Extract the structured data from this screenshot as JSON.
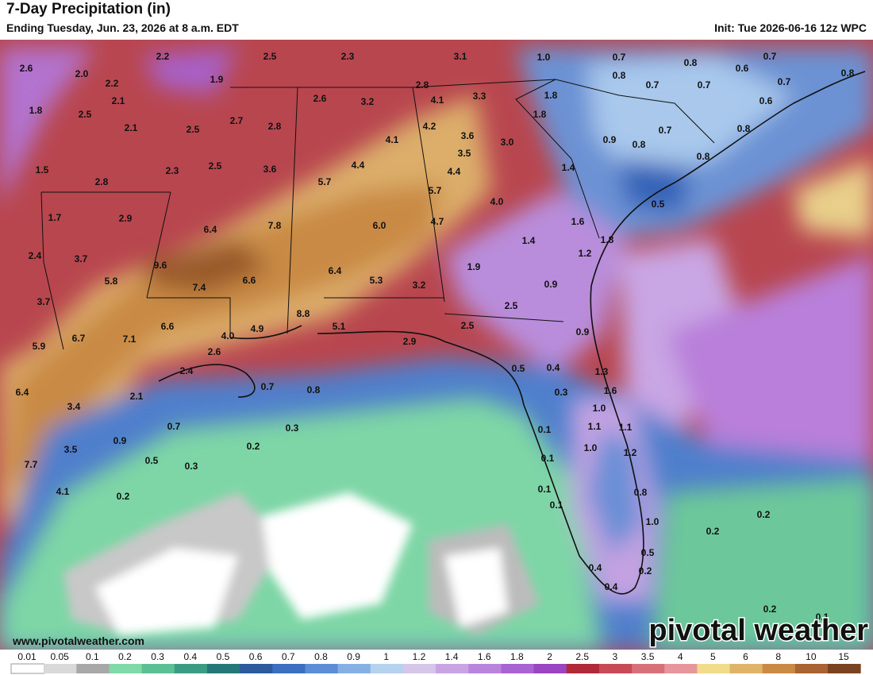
{
  "header": {
    "title": "7-Day Precipitation (in)",
    "subtitle": "Ending Tuesday, Jun. 23, 2026 at 8 a.m. EDT",
    "init": "Init: Tue 2026-06-16 12z WPC"
  },
  "map_labels": [
    "2.6",
    "2.2",
    "2.5",
    "2.3",
    "3.1",
    "1.0",
    "0.7",
    "0.8",
    "0.7",
    "0.6",
    "0.8",
    "2.0",
    "2.2",
    "1.9",
    "2.8",
    "0.8",
    "0.7",
    "0.7",
    "0.7",
    "1.8",
    "2.1",
    "2.5",
    "2.6",
    "3.2",
    "4.1",
    "3.3",
    "1.8",
    "0.6",
    "1.8",
    "2.1",
    "2.5",
    "2.7",
    "2.8",
    "4.2",
    "3.6",
    "3.0",
    "0.7",
    "0.8",
    "4.1",
    "0.9",
    "0.8",
    "1.5",
    "2.3",
    "2.5",
    "3.6",
    "4.4",
    "3.5",
    "4.4",
    "1.4",
    "0.8",
    "2.8",
    "5.7",
    "5.7",
    "4.0",
    "0.5",
    "1.7",
    "2.9",
    "6.4",
    "7.8",
    "6.0",
    "4.7",
    "1.6",
    "2.4",
    "3.7",
    "9.6",
    "1.4",
    "1.8",
    "1.2",
    "5.8",
    "6.6",
    "6.4",
    "5.3",
    "3.2",
    "1.9",
    "0.9",
    "3.7",
    "7.4",
    "2.5",
    "8.8",
    "5.1",
    "2.5",
    "6.6",
    "4.9",
    "0.9",
    "5.9",
    "6.7",
    "7.1",
    "4.0",
    "2.6",
    "2.9",
    "2.4",
    "0.5",
    "0.4",
    "1.3",
    "6.4",
    "2.1",
    "0.7",
    "0.8",
    "0.3",
    "1.6",
    "3.4",
    "1.0",
    "0.7",
    "0.3",
    "0.1",
    "1.1",
    "1.1",
    "0.9",
    "0.2",
    "1.0",
    "1.2",
    "3.5",
    "0.5",
    "0.3",
    "0.1",
    "7.7",
    "4.1",
    "0.2",
    "0.1",
    "0.8",
    "0.1",
    "1.0",
    "0.2",
    "0.2",
    "0.5",
    "0.4",
    "0.2",
    "0.4",
    "0.2",
    "0.1"
  ],
  "colorbar": {
    "ticks": [
      "0.01",
      "0.05",
      "0.1",
      "0.2",
      "0.3",
      "0.4",
      "0.5",
      "0.6",
      "0.7",
      "0.8",
      "0.9",
      "1",
      "1.2",
      "1.4",
      "1.6",
      "1.8",
      "2",
      "2.5",
      "3",
      "3.5",
      "4",
      "5",
      "6",
      "8",
      "10",
      "15"
    ],
    "colors": [
      "#ffffff",
      "#d9d9d9",
      "#a8a8a8",
      "#7fd9a8",
      "#5cc095",
      "#3b9c85",
      "#26777a",
      "#2c5a9c",
      "#3b6fc0",
      "#5d8dd6",
      "#86b0e4",
      "#b5d2ee",
      "#d6c6ea",
      "#c9a4e2",
      "#b985dc",
      "#a864d2",
      "#9a45c4",
      "#b02a38",
      "#c84a55",
      "#d8707a",
      "#e6969c",
      "#f2dc8c",
      "#e0b468",
      "#c98a44",
      "#a86432",
      "#7a4422"
    ]
  },
  "footer": {
    "website": "www.pivotalweather.com",
    "logo": "pivotal weather"
  }
}
